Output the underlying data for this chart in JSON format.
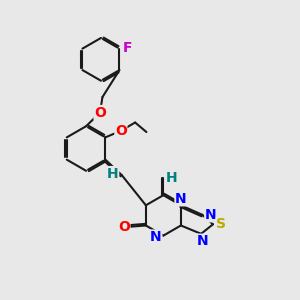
{
  "background_color": "#e8e8e8",
  "bond_color": "#1a1a1a",
  "bond_width": 1.5,
  "dbo": 0.055,
  "atom_labels": {
    "F": {
      "color": "#cc00cc",
      "fontsize": 10,
      "fontweight": "bold"
    },
    "O": {
      "color": "#ff0000",
      "fontsize": 10,
      "fontweight": "bold"
    },
    "N": {
      "color": "#0000ff",
      "fontsize": 10,
      "fontweight": "bold"
    },
    "S": {
      "color": "#bbaa00",
      "fontsize": 10,
      "fontweight": "bold"
    },
    "H": {
      "color": "#008080",
      "fontsize": 10,
      "fontweight": "bold"
    }
  },
  "figsize": [
    3.0,
    3.0
  ],
  "dpi": 100
}
